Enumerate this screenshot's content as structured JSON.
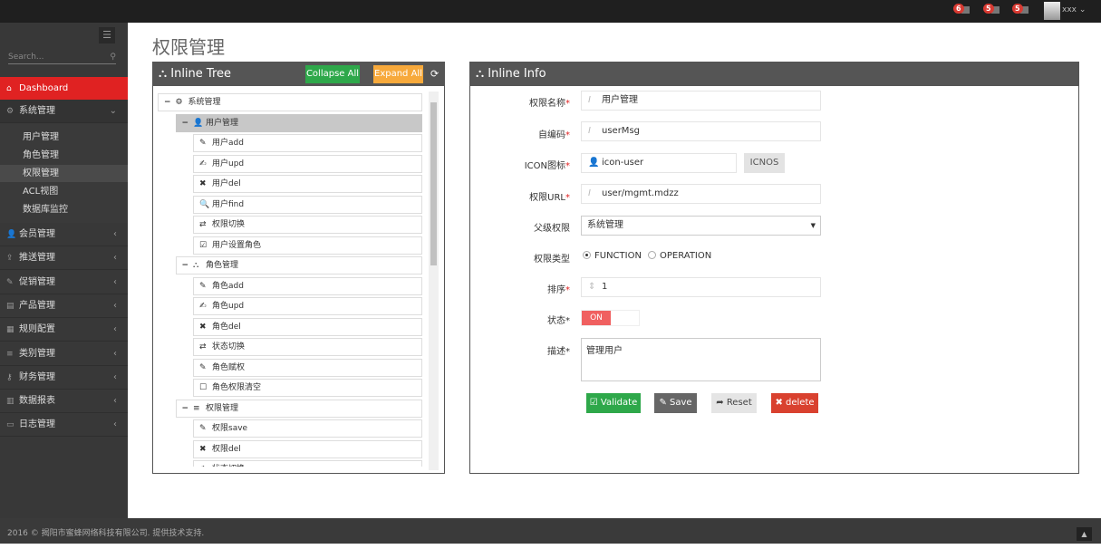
{
  "topbar": {
    "notifications": [
      {
        "count": "6",
        "icon": "bell-icon"
      },
      {
        "count": "5",
        "icon": "envelope-icon"
      },
      {
        "count": "5",
        "icon": "task-icon"
      }
    ],
    "user": "xxx"
  },
  "sidebar": {
    "search_placeholder": "Search...",
    "dashboard": "Dashboard",
    "system": {
      "label": "系统管理",
      "items": [
        "用户管理",
        "角色管理",
        "权限管理",
        "ACL视图",
        "数据库监控"
      ],
      "selected": "权限管理"
    },
    "menus": [
      {
        "label": "会员管理",
        "icon": "user-icon"
      },
      {
        "label": "推送管理",
        "icon": "share-icon"
      },
      {
        "label": "促销管理",
        "icon": "pencil-icon"
      },
      {
        "label": "产品管理",
        "icon": "box-icon"
      },
      {
        "label": "规则配置",
        "icon": "list-alt-icon"
      },
      {
        "label": "类别管理",
        "icon": "bars-icon"
      },
      {
        "label": "财务管理",
        "icon": "key-icon"
      },
      {
        "label": "数据报表",
        "icon": "bar-chart-icon"
      },
      {
        "label": "日志管理",
        "icon": "credit-card-icon"
      }
    ]
  },
  "page": {
    "title": "权限管理"
  },
  "tree": {
    "title": "Inline Tree",
    "collapse": "Collapse All",
    "expand": "Expand All",
    "nodes": [
      {
        "level": 0,
        "label": "系统管理",
        "icon": "⚙",
        "toggle": "−"
      },
      {
        "level": 1,
        "label": "用户管理",
        "icon": "👤",
        "toggle": "−",
        "selected": true
      },
      {
        "level": 2,
        "label": "用户add",
        "icon": "✎"
      },
      {
        "level": 2,
        "label": "用户upd",
        "icon": "✍"
      },
      {
        "level": 2,
        "label": "用户del",
        "icon": "✖"
      },
      {
        "level": 2,
        "label": "用户find",
        "icon": "🔍"
      },
      {
        "level": 2,
        "label": "权限切换",
        "icon": "⇄"
      },
      {
        "level": 2,
        "label": "用户设置角色",
        "icon": "☑"
      },
      {
        "level": 1,
        "label": "角色管理",
        "icon": "⛬",
        "toggle": "−"
      },
      {
        "level": 2,
        "label": "角色add",
        "icon": "✎"
      },
      {
        "level": 2,
        "label": "角色upd",
        "icon": "✍"
      },
      {
        "level": 2,
        "label": "角色del",
        "icon": "✖"
      },
      {
        "level": 2,
        "label": "状态切换",
        "icon": "⇄"
      },
      {
        "level": 2,
        "label": "角色赋权",
        "icon": "✎"
      },
      {
        "level": 2,
        "label": "角色权限清空",
        "icon": "☐"
      },
      {
        "level": 1,
        "label": "权限管理",
        "icon": "≡",
        "toggle": "−"
      },
      {
        "level": 2,
        "label": "权限save",
        "icon": "✎"
      },
      {
        "level": 2,
        "label": "权限del",
        "icon": "✖"
      },
      {
        "level": 2,
        "label": "状态切换",
        "icon": "✍"
      }
    ]
  },
  "info": {
    "title": "Inline Info",
    "name_label": "权限名称",
    "name": "用户管理",
    "code_label": "自编码",
    "code": "userMsg",
    "icon_label": "ICON图标",
    "icon_value": "icon-user",
    "icons_button": "ICNOS",
    "url_label": "权限URL",
    "url": "user/mgmt.mdzz",
    "parent_label": "父级权限",
    "parent": "系统管理",
    "type_label": "权限类型",
    "type_options": [
      "FUNCTION",
      "OPERATION"
    ],
    "type_selected": "FUNCTION",
    "order_label": "排序",
    "order": "1",
    "status_label": "状态",
    "status": "ON",
    "desc_label": "描述",
    "desc": "管理用户",
    "required": "*",
    "buttons": {
      "validate": "Validate",
      "save": "Save",
      "reset": "Reset",
      "delete": "delete"
    }
  },
  "colors": {
    "accent": "#e02222",
    "green": "#2ea84a",
    "orange": "#f7a93b",
    "red": "#d9412f"
  },
  "footer": {
    "text": "2016 © 揭阳市蜜蜂网络科技有限公司. 提供技术支持."
  }
}
